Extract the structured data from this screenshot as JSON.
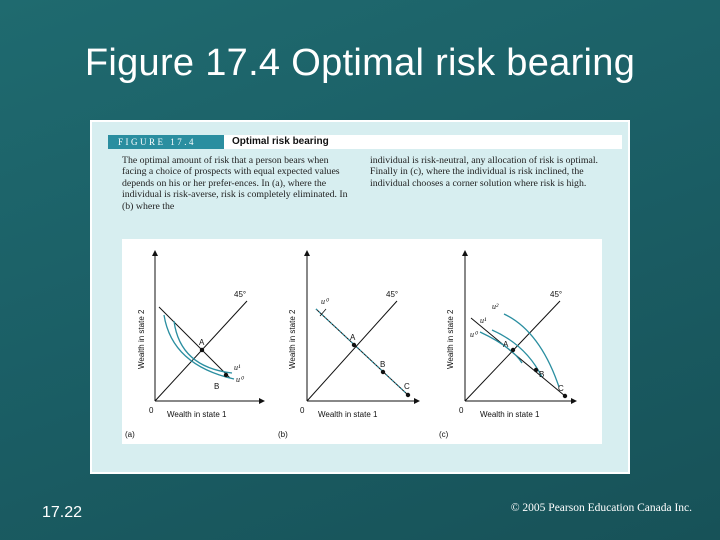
{
  "slide": {
    "title": "Figure 17.4 Optimal risk bearing",
    "number": "17.22",
    "copyright": "© 2005 Pearson Education Canada Inc."
  },
  "figure": {
    "label": "FIGURE 17.4",
    "caption_title": "Optimal risk bearing",
    "text_left": "The optimal amount of risk that a person bears when facing a choice of prospects with equal expected values depends on his or her prefer-ences. In (a), where the individual is risk-averse, risk is completely eliminated. In (b) where the",
    "text_right": "individual is risk-neutral, any allocation of risk is optimal. Finally in (c), where the individual is risk inclined, the individual chooses a corner solution where risk is high."
  },
  "panels": [
    {
      "panel_label": "(a)",
      "y_label": "Wealth in state 2",
      "x_label": "Wealth in state 1",
      "origin": "0",
      "angle_label": "45°",
      "points": [
        "A",
        "B"
      ],
      "curves": [
        "u¹",
        "u⁰"
      ]
    },
    {
      "panel_label": "(b)",
      "y_label": "Wealth in state 2",
      "x_label": "Wealth in state 1",
      "origin": "0",
      "angle_label": "45°",
      "points": [
        "A",
        "B",
        "C"
      ],
      "curves": [
        "u⁰"
      ]
    },
    {
      "panel_label": "(c)",
      "y_label": "Wealth in state 2",
      "x_label": "Wealth in state 1",
      "origin": "0",
      "angle_label": "45°",
      "points": [
        "A",
        "B",
        "C"
      ],
      "curves": [
        "u²",
        "u¹",
        "u⁰"
      ]
    }
  ],
  "colors": {
    "background": "#1b5f66",
    "figure_label_bg": "#2a8ea0",
    "panel_bg": "#d7eef0",
    "curve": "#2a8ea0"
  }
}
